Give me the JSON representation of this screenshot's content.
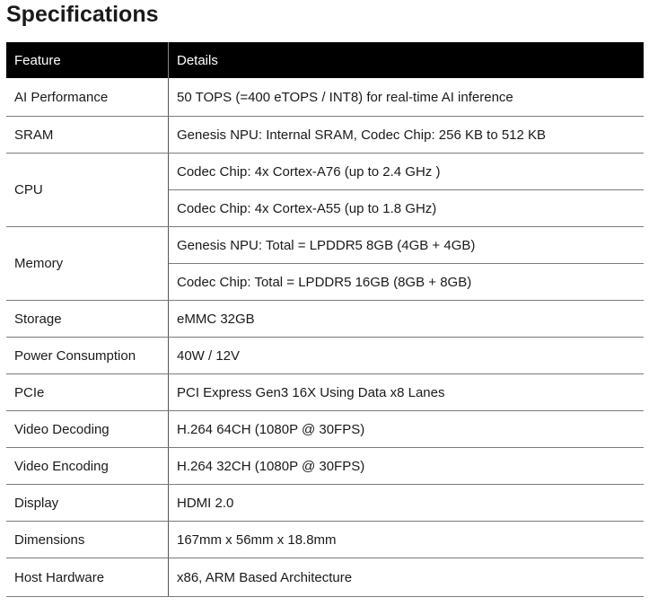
{
  "title": "Specifications",
  "headers": {
    "feature": "Feature",
    "details": "Details"
  },
  "rows": [
    {
      "feature": "AI Performance",
      "details": [
        "50 TOPS (=400 eTOPS / INT8) for real-time AI inference"
      ]
    },
    {
      "feature": "SRAM",
      "details": [
        "Genesis NPU: Internal SRAM, Codec Chip: 256 KB to 512 KB"
      ]
    },
    {
      "feature": "CPU",
      "details": [
        "Codec Chip: 4x Cortex-A76 (up to 2.4 GHz )",
        "Codec Chip: 4x Cortex-A55 (up to 1.8 GHz)"
      ]
    },
    {
      "feature": "Memory",
      "details": [
        "Genesis NPU: Total = LPDDR5 8GB (4GB + 4GB)",
        "Codec Chip: Total = LPDDR5 16GB (8GB + 8GB)"
      ]
    },
    {
      "feature": "Storage",
      "details": [
        "eMMC 32GB"
      ]
    },
    {
      "feature": "Power Consumption",
      "details": [
        "40W / 12V"
      ]
    },
    {
      "feature": "PCIe",
      "details": [
        "PCI Express Gen3 16X Using Data x8 Lanes"
      ]
    },
    {
      "feature": "Video Decoding",
      "details": [
        "H.264 64CH (1080P @ 30FPS)"
      ]
    },
    {
      "feature": "Video Encoding",
      "details": [
        "H.264 32CH (1080P @ 30FPS)"
      ]
    },
    {
      "feature": "Display",
      "details": [
        "HDMI 2.0"
      ]
    },
    {
      "feature": "Dimensions",
      "details": [
        "167mm x 56mm x 18.8mm"
      ]
    },
    {
      "feature": "Host Hardware",
      "details": [
        "x86, ARM Based Architecture"
      ]
    }
  ]
}
